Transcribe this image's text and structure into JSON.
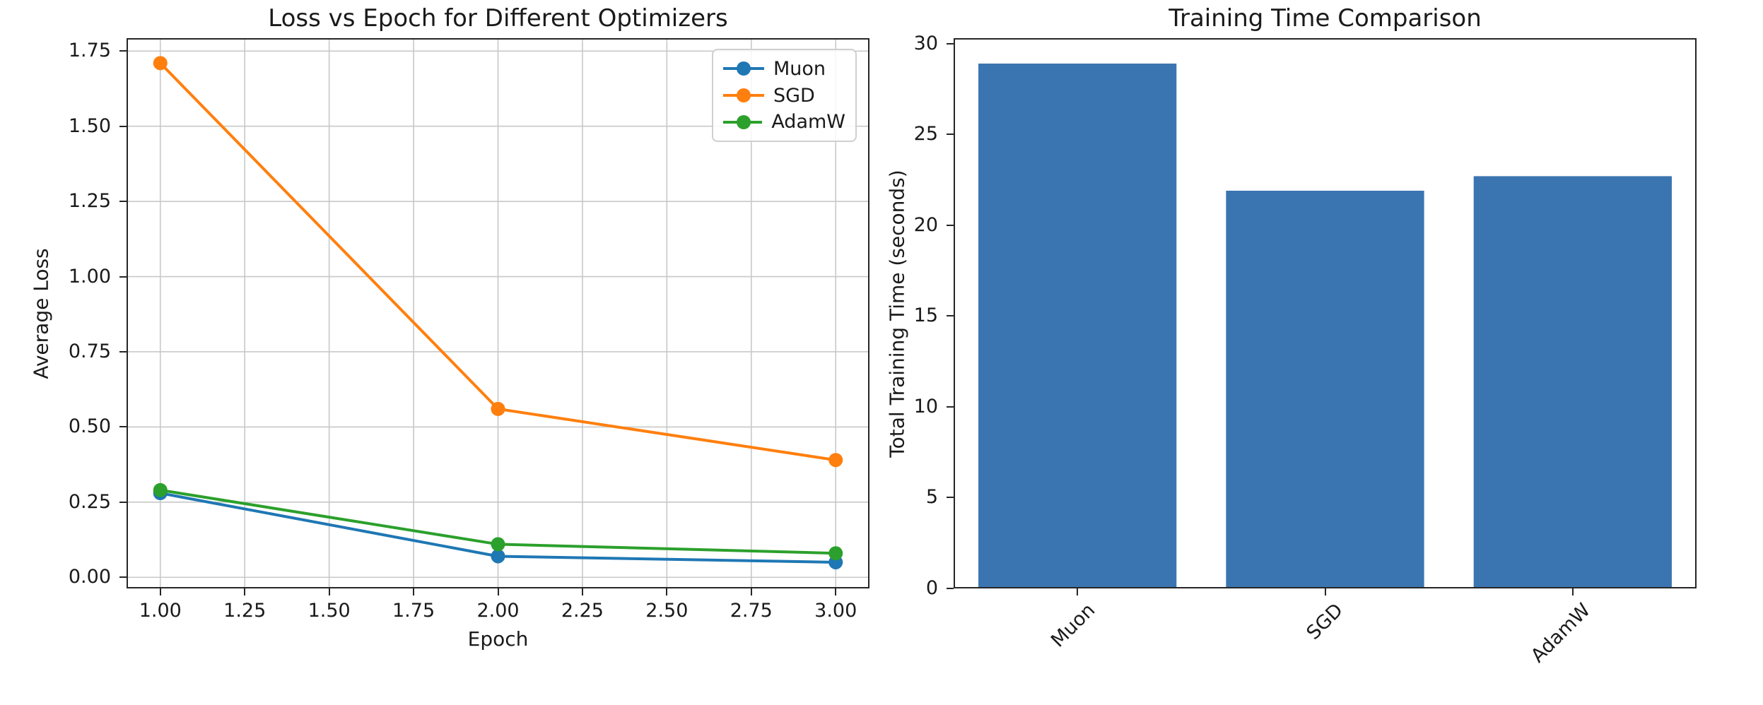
{
  "figure": {
    "background": "#ffffff",
    "text_color": "#1a1a1a"
  },
  "chart_data": [
    {
      "type": "line",
      "title": "Loss vs Epoch for Different Optimizers",
      "xlabel": "Epoch",
      "ylabel": "Average Loss",
      "x": [
        1,
        2,
        3
      ],
      "series": [
        {
          "name": "Muon",
          "color": "#1f77b4",
          "values": [
            0.28,
            0.07,
            0.05
          ]
        },
        {
          "name": "SGD",
          "color": "#ff7f0e",
          "values": [
            1.71,
            0.56,
            0.39
          ]
        },
        {
          "name": "AdamW",
          "color": "#2ca02c",
          "values": [
            0.29,
            0.11,
            0.08
          ]
        }
      ],
      "xlim": [
        0.9,
        3.1
      ],
      "ylim": [
        -0.037,
        1.793
      ],
      "xticks": [
        1.0,
        1.25,
        1.5,
        1.75,
        2.0,
        2.25,
        2.5,
        2.75,
        3.0
      ],
      "xtick_labels": [
        "1.00",
        "1.25",
        "1.50",
        "1.75",
        "2.00",
        "2.25",
        "2.50",
        "2.75",
        "3.00"
      ],
      "yticks": [
        0.0,
        0.25,
        0.5,
        0.75,
        1.0,
        1.25,
        1.5,
        1.75
      ],
      "ytick_labels": [
        "0.00",
        "0.25",
        "0.50",
        "0.75",
        "1.00",
        "1.25",
        "1.50",
        "1.75"
      ],
      "grid": true,
      "legend": {
        "position": "upper right",
        "labels": [
          "Muon",
          "SGD",
          "AdamW"
        ]
      }
    },
    {
      "type": "bar",
      "title": "Training Time Comparison",
      "xlabel": "",
      "ylabel": "Total Training Time (seconds)",
      "categories": [
        "Muon",
        "SGD",
        "AdamW"
      ],
      "values": [
        28.9,
        21.9,
        22.7
      ],
      "bar_color": "#3b75b1",
      "bar_width_fraction": 0.8,
      "ylim": [
        0,
        30.3
      ],
      "yticks": [
        0,
        5,
        10,
        15,
        20,
        25,
        30
      ],
      "ytick_labels": [
        "0",
        "5",
        "10",
        "15",
        "20",
        "25",
        "30"
      ],
      "xtick_rotation": 45,
      "grid": false
    }
  ]
}
